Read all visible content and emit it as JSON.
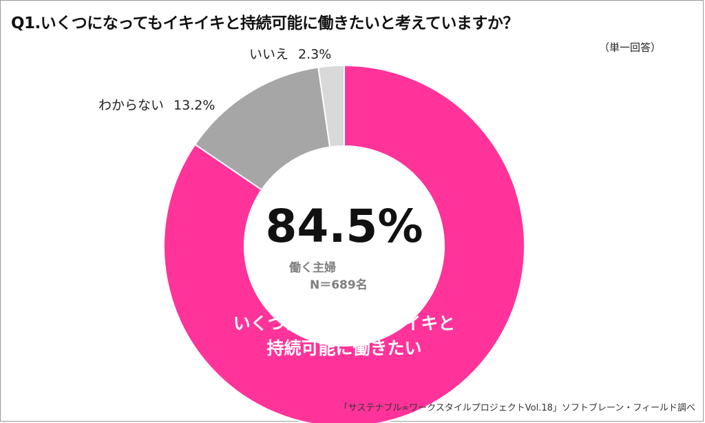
{
  "title": "Q1.いくつになってもイキイキと持続可能に働きたいと考えていますか？",
  "note": "（単一回答）",
  "source": "「サステナブル∞ワークスタイルプロジェクトVol.18」ソフトブレーン・フィールド調べ",
  "center": {
    "value": "84.5%",
    "group": "働く主婦",
    "n": "N＝689名"
  },
  "chart_data": {
    "type": "pie",
    "donut": true,
    "slices": [
      {
        "label": "いくつになってもイキイキと持続可能に働きたい",
        "label_line1": "いくつになってもイキイキと",
        "label_line2": "持続可能に働きたい",
        "value": 84.5,
        "color": "#ff3399"
      },
      {
        "label": "わからない",
        "value": 13.2,
        "value_text": "13.2%",
        "color": "#a6a6a6"
      },
      {
        "label": "いいえ",
        "value": 2.3,
        "value_text": "2.3%",
        "color": "#d9d9d9"
      }
    ]
  }
}
